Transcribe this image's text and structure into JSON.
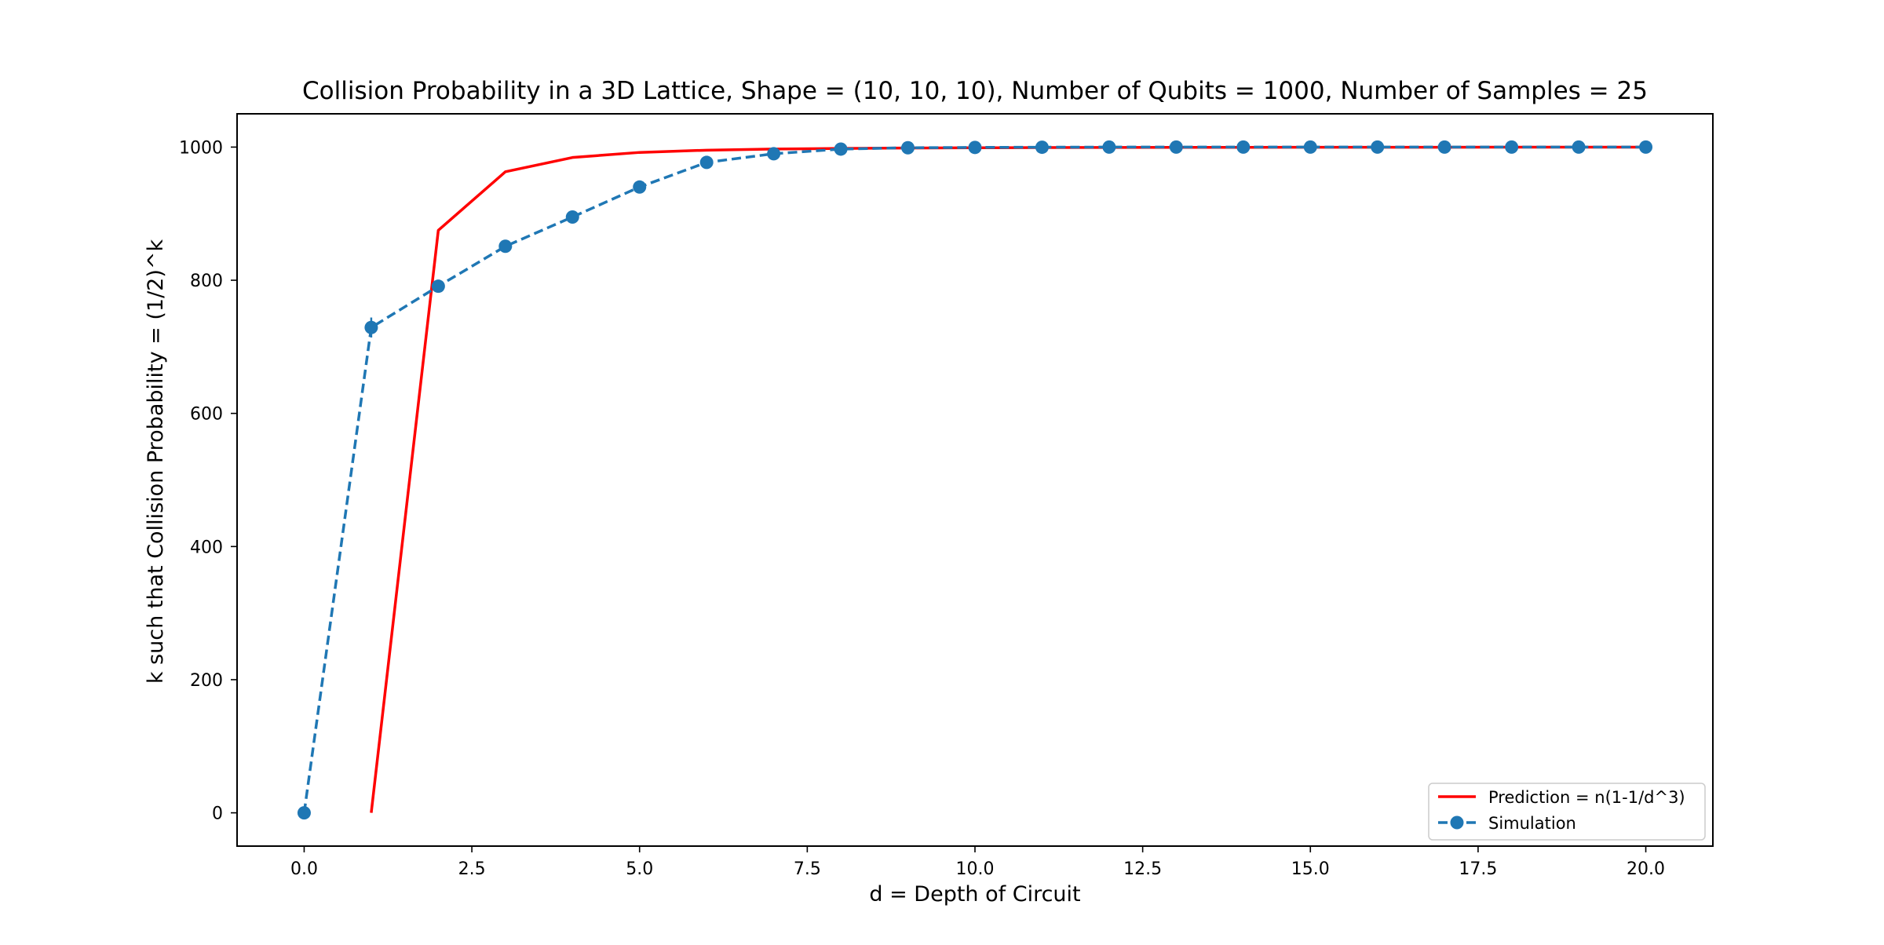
{
  "chart_data": {
    "type": "line",
    "title": "Collision Probability in a 3D Lattice, Shape = (10, 10, 10), Number of Qubits = 1000, Number of Samples = 25",
    "xlabel": "d = Depth of Circuit",
    "ylabel": "k such that Collision Probability = (1/2)^k",
    "xlim": [
      -1.0,
      21.0
    ],
    "ylim": [
      -50,
      1050
    ],
    "xticks": [
      0.0,
      2.5,
      5.0,
      7.5,
      10.0,
      12.5,
      15.0,
      17.5,
      20.0
    ],
    "xtick_labels": [
      "0.0",
      "2.5",
      "5.0",
      "7.5",
      "10.0",
      "12.5",
      "15.0",
      "17.5",
      "20.0"
    ],
    "yticks": [
      0,
      200,
      400,
      600,
      800,
      1000
    ],
    "ytick_labels": [
      "0",
      "200",
      "400",
      "600",
      "800",
      "1000"
    ],
    "grid": false,
    "legend_position": "lower right",
    "series": [
      {
        "name": "Prediction = n(1-1/d^3)",
        "style": "solid",
        "marker": "none",
        "color": "#ff0000",
        "x": [
          1,
          2,
          3,
          4,
          5,
          6,
          7,
          8,
          9,
          10,
          11,
          12,
          13,
          14,
          15,
          16,
          17,
          18,
          19,
          20
        ],
        "y": [
          0,
          875,
          962.963,
          984.375,
          992,
          995.37,
          997.085,
          998.047,
          998.628,
          999,
          999.249,
          999.421,
          999.545,
          999.636,
          999.704,
          999.756,
          999.796,
          999.829,
          999.854,
          999.875
        ]
      },
      {
        "name": "Simulation",
        "style": "dashed",
        "marker": "circle",
        "color": "#1f77b4",
        "x": [
          0,
          1,
          2,
          3,
          4,
          5,
          6,
          7,
          8,
          9,
          10,
          11,
          12,
          13,
          14,
          15,
          16,
          17,
          18,
          19,
          20
        ],
        "y": [
          0,
          729,
          791,
          851,
          895,
          940,
          977,
          990,
          997,
          999,
          999.5,
          999.8,
          1000,
          1000,
          1000,
          1000,
          1000,
          1000,
          1000,
          1000,
          1000
        ],
        "error": [
          0,
          15,
          8,
          6,
          5,
          4,
          3,
          2,
          1,
          1,
          0.5,
          0.5,
          0,
          0,
          0,
          0,
          0,
          0,
          0,
          0,
          0
        ]
      }
    ]
  }
}
